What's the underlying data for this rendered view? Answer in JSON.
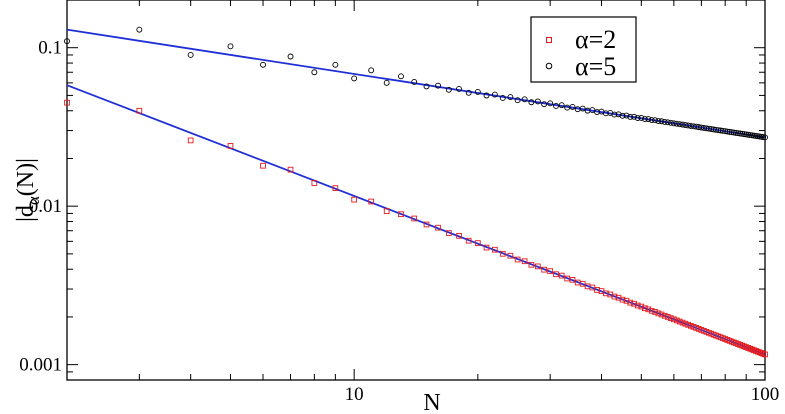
{
  "chart_data": {
    "type": "scatter",
    "title": "",
    "xlabel": "N",
    "ylabel": "|d",
    "ylabel_sub": "α",
    "ylabel_tail": "(N)|",
    "xscale": "log",
    "yscale": "log",
    "xlim": [
      2,
      100
    ],
    "ylim": [
      0.0008,
      0.2
    ],
    "grid": false,
    "legend_position": "top-right",
    "x_ticks": [
      {
        "value": 10,
        "label": "10"
      },
      {
        "value": 100,
        "label": "100"
      }
    ],
    "y_ticks": [
      {
        "value": 0.001,
        "label": "0.001"
      },
      {
        "value": 0.01,
        "label": "0.01"
      },
      {
        "value": 0.1,
        "label": "0.1"
      }
    ],
    "series": [
      {
        "name": "α=2",
        "color": "#e41a1c",
        "marker": "square",
        "fit": {
          "x0": 2,
          "y0": 0.058,
          "slope": -1.0,
          "color": "#1f2fd6"
        },
        "points": [
          [
            2,
            0.045
          ],
          [
            3,
            0.04
          ],
          [
            4,
            0.026
          ],
          [
            5,
            0.024
          ],
          [
            6,
            0.018
          ],
          [
            7,
            0.017
          ],
          [
            8,
            0.014
          ],
          [
            9,
            0.013
          ],
          [
            10,
            0.011
          ],
          [
            11,
            0.0107
          ],
          [
            12,
            0.0093
          ],
          [
            13,
            0.0089
          ]
        ]
      },
      {
        "name": "α=5",
        "color": "#000000",
        "marker": "circle",
        "fit": {
          "x0": 2,
          "y0": 0.13,
          "slope": -0.4,
          "color": "#1f2fd6"
        },
        "points": [
          [
            2,
            0.11
          ],
          [
            3,
            0.13
          ],
          [
            4,
            0.09
          ],
          [
            5,
            0.102
          ],
          [
            6,
            0.078
          ],
          [
            7,
            0.088
          ],
          [
            8,
            0.07
          ],
          [
            9,
            0.078
          ],
          [
            10,
            0.064
          ],
          [
            11,
            0.072
          ],
          [
            12,
            0.06
          ],
          [
            13,
            0.066
          ]
        ]
      }
    ],
    "dense_points_from": 14,
    "dense_points_to": 100
  }
}
